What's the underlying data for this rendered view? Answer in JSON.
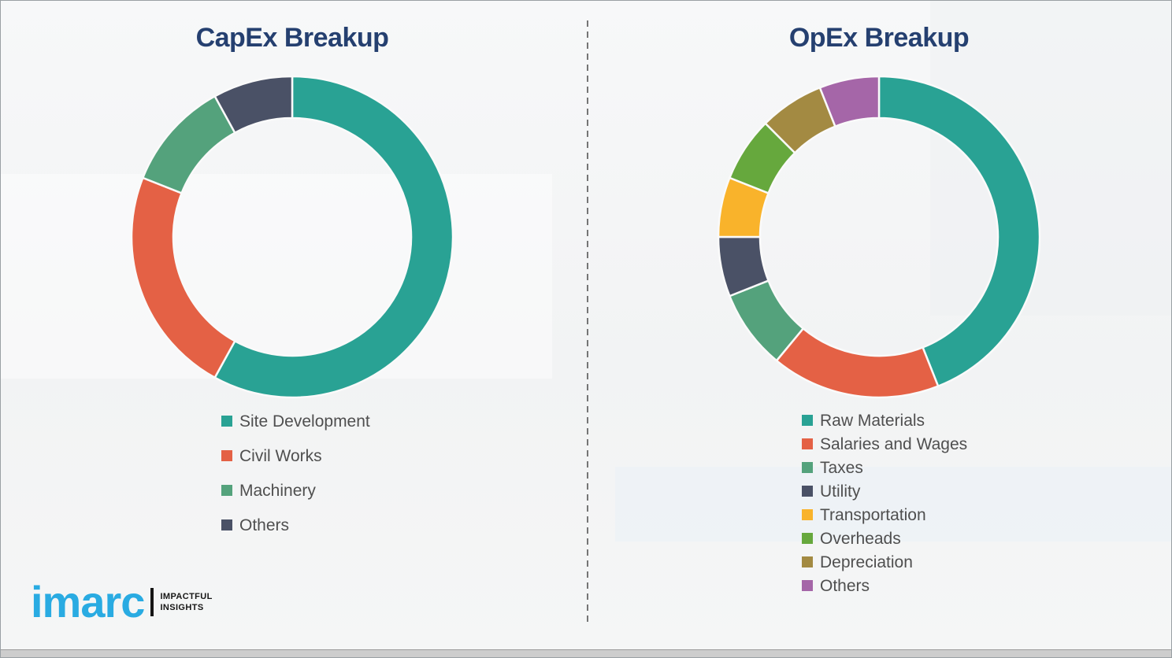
{
  "chart_data": [
    {
      "type": "pie",
      "variant": "donut",
      "title": "CapEx Breakup",
      "legend_position": "bottom-left",
      "categories": [
        "Site Development",
        "Civil Works",
        "Machinery",
        "Others"
      ],
      "values": [
        58,
        23,
        11,
        8
      ],
      "colors": [
        "#29A294",
        "#E46145",
        "#54A27C",
        "#4A5166"
      ],
      "start_angle_deg": 0,
      "direction": "clockwise"
    },
    {
      "type": "pie",
      "variant": "donut",
      "title": "OpEx Breakup",
      "legend_position": "bottom-left",
      "categories": [
        "Raw Materials",
        "Salaries and Wages",
        "Taxes",
        "Utility",
        "Transportation",
        "Overheads",
        "Depreciation",
        "Others"
      ],
      "values": [
        44,
        17,
        8,
        6,
        6,
        6.5,
        6.5,
        6
      ],
      "colors": [
        "#29A294",
        "#E46145",
        "#54A27C",
        "#4A5166",
        "#F9B32B",
        "#66A83D",
        "#A38A42",
        "#A566A8"
      ],
      "start_angle_deg": 0,
      "direction": "clockwise"
    }
  ],
  "logo": {
    "brand": "imarc",
    "tagline_line1": "IMPACTFUL",
    "tagline_line2": "INSIGHTS",
    "brand_color": "#29ABE2"
  },
  "style": {
    "title_color": "#254070",
    "legend_text_color": "#4f4f4f",
    "segment_separator_color": "#fafafa"
  }
}
